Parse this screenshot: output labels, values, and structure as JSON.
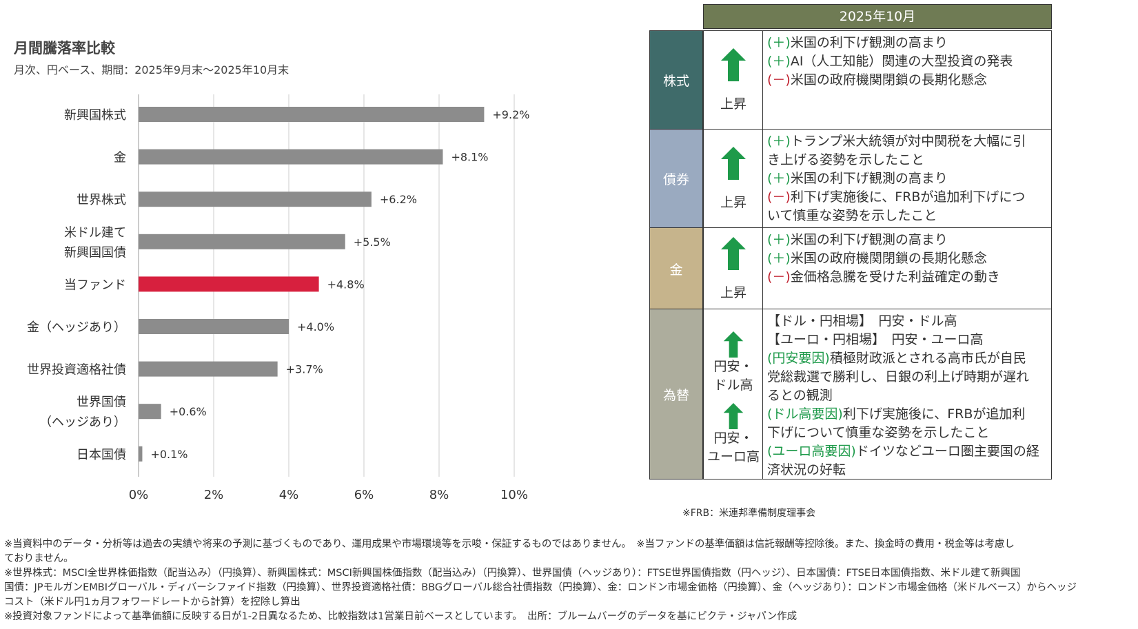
{
  "title": "月間騰落率比較",
  "subtitle": "月次、円ベース、期間：2025年9月末～2025年10月末",
  "chart_data": {
    "type": "bar",
    "orientation": "horizontal",
    "categories": [
      [
        "新興国株式"
      ],
      [
        "金"
      ],
      [
        "世界株式"
      ],
      [
        "米ドル建て",
        "新興国国債"
      ],
      [
        "当ファンド"
      ],
      [
        "金（ヘッジあり）"
      ],
      [
        "世界投資適格社債"
      ],
      [
        "世界国債",
        "（ヘッジあり）"
      ],
      [
        "日本国債"
      ]
    ],
    "values": [
      9.2,
      8.1,
      6.2,
      5.5,
      4.8,
      4.0,
      3.7,
      0.6,
      0.1
    ],
    "value_labels": [
      "+9.2%",
      "+8.1%",
      "+6.2%",
      "+5.5%",
      "+4.8%",
      "+4.0%",
      "+3.7%",
      "+0.6%",
      "+0.1%"
    ],
    "highlight_index": 4,
    "xlim": [
      0,
      10
    ],
    "xticks": [
      0,
      2,
      4,
      6,
      8,
      10
    ],
    "xtick_labels": [
      "0%",
      "2%",
      "4%",
      "6%",
      "8%",
      "10%"
    ],
    "xlabel": "",
    "ylabel": "",
    "grid": true,
    "colors": {
      "bar": "#8c8c8c",
      "highlight": "#d7203e",
      "grid": "#cccccc"
    }
  },
  "table": {
    "header": "2025年10月",
    "rows": [
      {
        "asset": "株式",
        "color": "#3f6b6a",
        "direction": [
          "上昇"
        ],
        "lines": [
          [
            [
              "(＋)",
              "g"
            ],
            [
              "米国の利下げ観測の高まり",
              ""
            ]
          ],
          [
            [
              "(＋)",
              "g"
            ],
            [
              "AI（人工知能）関連の大型投資の発表",
              ""
            ]
          ],
          [
            [
              "(－)",
              "r"
            ],
            [
              "米国の政府機関閉鎖の長期化懸念",
              ""
            ]
          ]
        ]
      },
      {
        "asset": "債券",
        "color": "#9aaac0",
        "direction": [
          "上昇"
        ],
        "lines": [
          [
            [
              "(＋)",
              "g"
            ],
            [
              "トランプ米大統領が対中関税を大幅に引",
              ""
            ]
          ],
          [
            [
              "き上げる姿勢を示したこと",
              ""
            ]
          ],
          [
            [
              "(＋)",
              "g"
            ],
            [
              "米国の利下げ観測の高まり",
              ""
            ]
          ],
          [
            [
              "(－)",
              "r"
            ],
            [
              "利下げ実施後に、FRBが追加利下げにつ",
              ""
            ]
          ],
          [
            [
              "いて慎重な姿勢を示したこと",
              ""
            ]
          ]
        ]
      },
      {
        "asset": "金",
        "color": "#c6b48c",
        "direction": [
          "上昇"
        ],
        "lines": [
          [
            [
              "(＋)",
              "g"
            ],
            [
              "米国の利下げ観測の高まり",
              ""
            ]
          ],
          [
            [
              "(＋)",
              "g"
            ],
            [
              "米国の政府機関閉鎖の長期化懸念",
              ""
            ]
          ],
          [
            [
              "(－)",
              "r"
            ],
            [
              "金価格急騰を受けた利益確定の動き",
              ""
            ]
          ]
        ]
      },
      {
        "asset": "為替",
        "color": "#adad9d",
        "direction": [
          "円安・",
          "ドル高",
          "円安・",
          "ユーロ高"
        ],
        "lines": [
          [
            [
              "【ドル・円相場】　円安・ドル高",
              ""
            ]
          ],
          [
            [
              "【ユーロ・円相場】　円安・ユーロ高",
              ""
            ]
          ],
          [
            [
              "(円安要因)",
              "g"
            ],
            [
              "積極財政派とされる高市氏が自民",
              ""
            ]
          ],
          [
            [
              "党総裁選で勝利し、日銀の利上げ時期が遅れ",
              ""
            ]
          ],
          [
            [
              "るとの観測",
              ""
            ]
          ],
          [
            [
              "(ドル高要因)",
              "g"
            ],
            [
              "利下げ実施後に、FRBが追加利",
              ""
            ]
          ],
          [
            [
              "下げについて慎重な姿勢を示したこと",
              ""
            ]
          ],
          [
            [
              "(ユーロ高要因)",
              "g"
            ],
            [
              "ドイツなどユーロ圏主要国の経",
              ""
            ]
          ],
          [
            [
              "済状況の好転",
              ""
            ]
          ]
        ]
      }
    ]
  },
  "frb_note": "※FRB：米連邦準備制度理事会",
  "footnotes": [
    "※当資料中のデータ・分析等は過去の実績や将来の予測に基づくものであり、運用成果や市場環境等を示唆・保証するものではありません。　※当ファンドの基準価額は信託報酬等控除後。また、換金時の費用・税金等は考慮し",
    "ておりません。",
    "※世界株式：MSCI全世界株価指数（配当込み）（円換算）、新興国株式：MSCI新興国株価指数（配当込み）（円換算）、世界国債（ヘッジあり）：FTSE世界国債指数（円ヘッジ）、日本国債：FTSE日本国債指数、米ドル建て新興国",
    "国債：JPモルガンEMBIグローバル・ディバーシファイド指数（円換算）、世界投資適格社債：BBGグローバル総合社債指数（円換算）、金：ロンドン市場金価格（円換算）、金（ヘッジあり）：ロンドン市場金価格（米ドルベース）からヘッジ",
    "コスト（米ドル円1ヵ月フォワードレートから計算）を控除し算出",
    "※投資対象ファンドによって基準価額に反映する日が1-2日異なるため、比較指数は1営業日前ベースとしています。　出所：ブルームバーグのデータを基にピクテ・ジャパン作成"
  ]
}
